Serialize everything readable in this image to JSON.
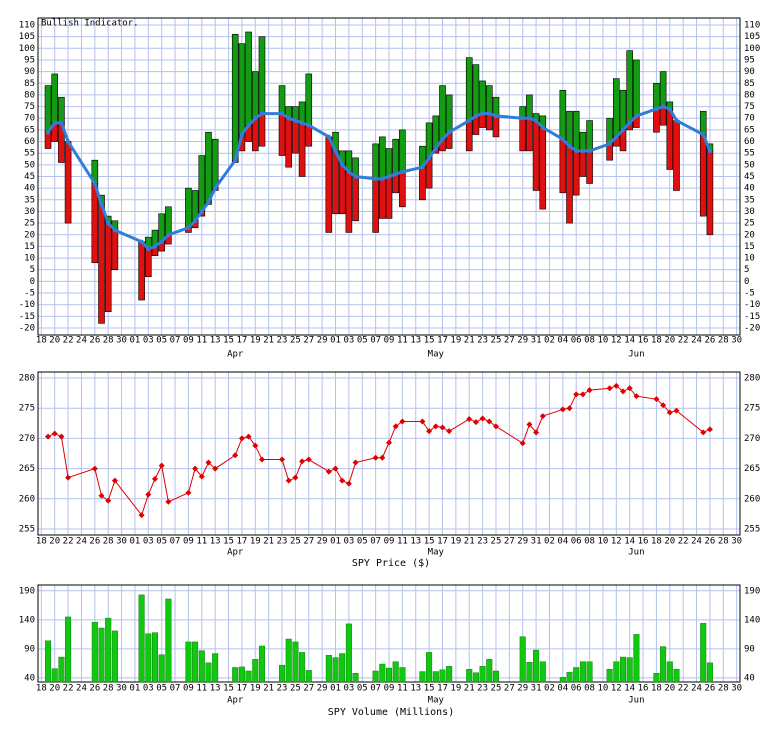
{
  "chart_data": [
    {
      "type": "range_bar",
      "title": "Bullish Indicator.",
      "x": [
        1,
        2,
        3,
        4,
        8,
        9,
        10,
        11,
        15,
        16,
        17,
        18,
        19,
        22,
        23,
        24,
        25,
        26,
        29,
        30,
        31,
        32,
        33,
        36,
        37,
        38,
        39,
        40,
        43,
        44,
        45,
        46,
        47,
        50,
        51,
        52,
        53,
        54,
        57,
        58,
        59,
        60,
        61,
        64,
        65,
        66,
        67,
        68,
        72,
        73,
        74,
        75,
        78,
        79,
        80,
        81,
        82,
        85,
        86,
        87,
        88,
        89,
        92,
        93,
        94,
        95,
        99,
        100
      ],
      "values": [
        64,
        68,
        68,
        60,
        42,
        33,
        25,
        22,
        17,
        14,
        15,
        17,
        20,
        23,
        26,
        30,
        34,
        40,
        52,
        63,
        67,
        70,
        72,
        72,
        70,
        69,
        68,
        67,
        62,
        56,
        50,
        47,
        45,
        44,
        44,
        45,
        46,
        47,
        49,
        53,
        57,
        61,
        64,
        69,
        71,
        72,
        72,
        71,
        70,
        70,
        69,
        66,
        61,
        58,
        56,
        56,
        56,
        59,
        62,
        65,
        68,
        71,
        74,
        75,
        74,
        69,
        63,
        56
      ],
      "high": [
        84,
        89,
        79,
        60,
        52,
        37,
        28,
        26,
        17,
        19,
        22,
        29,
        32,
        40,
        39,
        54,
        64,
        61,
        106,
        102,
        107,
        90,
        105,
        84,
        75,
        75,
        77,
        89,
        62,
        64,
        56,
        56,
        53,
        59,
        62,
        57,
        61,
        65,
        58,
        68,
        71,
        84,
        80,
        96,
        93,
        86,
        84,
        79,
        75,
        80,
        72,
        71,
        82,
        73,
        73,
        64,
        69,
        70,
        87,
        82,
        99,
        95,
        85,
        90,
        77,
        69,
        73,
        59
      ],
      "low": [
        57,
        60,
        51,
        25,
        8,
        -18,
        -13,
        5,
        -8,
        2,
        11,
        13,
        16,
        21,
        23,
        28,
        33,
        39,
        51,
        56,
        60,
        56,
        58,
        54,
        49,
        55,
        45,
        58,
        21,
        29,
        29,
        21,
        26,
        21,
        27,
        27,
        38,
        32,
        35,
        40,
        55,
        56,
        57,
        56,
        63,
        66,
        65,
        62,
        56,
        56,
        39,
        31,
        38,
        25,
        37,
        45,
        42,
        52,
        58,
        56,
        65,
        66,
        64,
        67,
        48,
        39,
        28,
        20
      ],
      "line_color": "#2f7fd8",
      "up_color": "#139c13",
      "down_color": "#e01010",
      "xlim": [
        -0.5,
        104.5
      ],
      "ylim": [
        -23,
        113
      ],
      "yticks": [
        -20,
        -15,
        -10,
        -5,
        0,
        5,
        10,
        15,
        20,
        25,
        30,
        35,
        40,
        45,
        50,
        55,
        60,
        65,
        70,
        75,
        80,
        85,
        90,
        95,
        100,
        105,
        110
      ],
      "xticks": [
        {
          "value": 0,
          "label": "18"
        },
        {
          "value": 2,
          "label": "20"
        },
        {
          "value": 4,
          "label": "22"
        },
        {
          "value": 6,
          "label": "24"
        },
        {
          "value": 8,
          "label": "26"
        },
        {
          "value": 10,
          "label": "28"
        },
        {
          "value": 12,
          "label": "30"
        },
        {
          "value": 14,
          "label": "01"
        },
        {
          "value": 16,
          "label": "03"
        },
        {
          "value": 18,
          "label": "05"
        },
        {
          "value": 20,
          "label": "07"
        },
        {
          "value": 22,
          "label": "09"
        },
        {
          "value": 24,
          "label": "11"
        },
        {
          "value": 26,
          "label": "13"
        },
        {
          "value": 28,
          "label": "15"
        },
        {
          "value": 30,
          "label": "17"
        },
        {
          "value": 32,
          "label": "19"
        },
        {
          "value": 34,
          "label": "21"
        },
        {
          "value": 36,
          "label": "23"
        },
        {
          "value": 38,
          "label": "25"
        },
        {
          "value": 40,
          "label": "27"
        },
        {
          "value": 42,
          "label": "29"
        },
        {
          "value": 44,
          "label": "01"
        },
        {
          "value": 46,
          "label": "03"
        },
        {
          "value": 48,
          "label": "05"
        },
        {
          "value": 50,
          "label": "07"
        },
        {
          "value": 52,
          "label": "09"
        },
        {
          "value": 54,
          "label": "11"
        },
        {
          "value": 56,
          "label": "13"
        },
        {
          "value": 58,
          "label": "15"
        },
        {
          "value": 60,
          "label": "17"
        },
        {
          "value": 62,
          "label": "19"
        },
        {
          "value": 64,
          "label": "21"
        },
        {
          "value": 66,
          "label": "23"
        },
        {
          "value": 68,
          "label": "25"
        },
        {
          "value": 70,
          "label": "27"
        },
        {
          "value": 72,
          "label": "29"
        },
        {
          "value": 74,
          "label": "31"
        },
        {
          "value": 76,
          "label": "02"
        },
        {
          "value": 78,
          "label": "04"
        },
        {
          "value": 80,
          "label": "06"
        },
        {
          "value": 82,
          "label": "08"
        },
        {
          "value": 84,
          "label": "10"
        },
        {
          "value": 86,
          "label": "12"
        },
        {
          "value": 88,
          "label": "14"
        },
        {
          "value": 90,
          "label": "16"
        },
        {
          "value": 92,
          "label": "18"
        },
        {
          "value": 94,
          "label": "20"
        },
        {
          "value": 96,
          "label": "22"
        },
        {
          "value": 98,
          "label": "24"
        },
        {
          "value": 100,
          "label": "26"
        },
        {
          "value": 102,
          "label": "28"
        },
        {
          "value": 104,
          "label": "30"
        }
      ],
      "xmonths": [
        {
          "value": 29,
          "label": "Apr"
        },
        {
          "value": 59,
          "label": "May"
        },
        {
          "value": 89,
          "label": "Jun"
        }
      ],
      "grid": true
    },
    {
      "type": "line",
      "xlabel": "SPY Price ($)",
      "x": [
        1,
        2,
        3,
        4,
        8,
        9,
        10,
        11,
        15,
        16,
        17,
        18,
        19,
        22,
        23,
        24,
        25,
        26,
        29,
        30,
        31,
        32,
        33,
        36,
        37,
        38,
        39,
        40,
        43,
        44,
        45,
        46,
        47,
        50,
        51,
        52,
        53,
        54,
        57,
        58,
        59,
        60,
        61,
        64,
        65,
        66,
        67,
        68,
        72,
        73,
        74,
        75,
        78,
        79,
        80,
        81,
        82,
        85,
        86,
        87,
        88,
        89,
        92,
        93,
        94,
        95,
        99,
        100
      ],
      "values": [
        270.3,
        270.8,
        270.3,
        263.5,
        265,
        260.5,
        259.7,
        263,
        257.3,
        260.7,
        263.3,
        265.5,
        259.5,
        261,
        265,
        263.7,
        266,
        265,
        267.2,
        270,
        270.3,
        268.8,
        266.5,
        266.5,
        263,
        263.5,
        266.2,
        266.5,
        264.5,
        265,
        263,
        262.5,
        266,
        266.8,
        266.8,
        269.3,
        272,
        272.8,
        272.8,
        271.2,
        272,
        271.8,
        271.2,
        273.2,
        272.7,
        273.3,
        272.8,
        272,
        269.2,
        272.3,
        271,
        273.7,
        274.8,
        275,
        277.3,
        277.3,
        278,
        278.3,
        278.7,
        277.8,
        278.3,
        277,
        276.5,
        275.5,
        274.3,
        274.6,
        271,
        271.5
      ],
      "color": "#e00000",
      "xlim": [
        -0.5,
        104.5
      ],
      "ylim": [
        254,
        281
      ],
      "yticks": [
        255,
        260,
        265,
        270,
        275,
        280
      ],
      "xticks": [
        {
          "value": 0,
          "label": "18"
        },
        {
          "value": 2,
          "label": "20"
        },
        {
          "value": 4,
          "label": "22"
        },
        {
          "value": 6,
          "label": "24"
        },
        {
          "value": 8,
          "label": "26"
        },
        {
          "value": 10,
          "label": "28"
        },
        {
          "value": 12,
          "label": "30"
        },
        {
          "value": 14,
          "label": "01"
        },
        {
          "value": 16,
          "label": "03"
        },
        {
          "value": 18,
          "label": "05"
        },
        {
          "value": 20,
          "label": "07"
        },
        {
          "value": 22,
          "label": "09"
        },
        {
          "value": 24,
          "label": "11"
        },
        {
          "value": 26,
          "label": "13"
        },
        {
          "value": 28,
          "label": "15"
        },
        {
          "value": 30,
          "label": "17"
        },
        {
          "value": 32,
          "label": "19"
        },
        {
          "value": 34,
          "label": "21"
        },
        {
          "value": 36,
          "label": "23"
        },
        {
          "value": 38,
          "label": "25"
        },
        {
          "value": 40,
          "label": "27"
        },
        {
          "value": 42,
          "label": "29"
        },
        {
          "value": 44,
          "label": "01"
        },
        {
          "value": 46,
          "label": "03"
        },
        {
          "value": 48,
          "label": "05"
        },
        {
          "value": 50,
          "label": "07"
        },
        {
          "value": 52,
          "label": "09"
        },
        {
          "value": 54,
          "label": "11"
        },
        {
          "value": 56,
          "label": "13"
        },
        {
          "value": 58,
          "label": "15"
        },
        {
          "value": 60,
          "label": "17"
        },
        {
          "value": 62,
          "label": "19"
        },
        {
          "value": 64,
          "label": "21"
        },
        {
          "value": 66,
          "label": "23"
        },
        {
          "value": 68,
          "label": "25"
        },
        {
          "value": 70,
          "label": "27"
        },
        {
          "value": 72,
          "label": "29"
        },
        {
          "value": 74,
          "label": "31"
        },
        {
          "value": 76,
          "label": "02"
        },
        {
          "value": 78,
          "label": "04"
        },
        {
          "value": 80,
          "label": "06"
        },
        {
          "value": 82,
          "label": "08"
        },
        {
          "value": 84,
          "label": "10"
        },
        {
          "value": 86,
          "label": "12"
        },
        {
          "value": 88,
          "label": "14"
        },
        {
          "value": 90,
          "label": "16"
        },
        {
          "value": 92,
          "label": "18"
        },
        {
          "value": 94,
          "label": "20"
        },
        {
          "value": 96,
          "label": "22"
        },
        {
          "value": 98,
          "label": "24"
        },
        {
          "value": 100,
          "label": "26"
        },
        {
          "value": 102,
          "label": "28"
        },
        {
          "value": 104,
          "label": "30"
        }
      ],
      "xmonths": [
        {
          "value": 29,
          "label": "Apr"
        },
        {
          "value": 59,
          "label": "May"
        },
        {
          "value": 89,
          "label": "Jun"
        }
      ],
      "grid": true
    },
    {
      "type": "bar",
      "xlabel": "SPY Volume (Millions)",
      "x": [
        1,
        2,
        3,
        4,
        8,
        9,
        10,
        11,
        15,
        16,
        17,
        18,
        19,
        22,
        23,
        24,
        25,
        26,
        29,
        30,
        31,
        32,
        33,
        36,
        37,
        38,
        39,
        40,
        43,
        44,
        45,
        46,
        47,
        50,
        51,
        52,
        53,
        54,
        57,
        58,
        59,
        60,
        61,
        64,
        65,
        66,
        67,
        68,
        72,
        73,
        74,
        75,
        78,
        79,
        80,
        81,
        82,
        85,
        86,
        87,
        88,
        89,
        92,
        93,
        94,
        95,
        99,
        100
      ],
      "values": [
        104,
        56,
        76,
        145,
        136,
        126,
        143,
        121,
        183,
        116,
        118,
        80,
        176,
        102,
        102,
        87,
        66,
        82,
        58,
        59,
        52,
        72,
        95,
        62,
        107,
        102,
        84,
        53,
        79,
        75,
        82,
        133,
        48,
        52,
        64,
        57,
        68,
        58,
        51,
        84,
        51,
        54,
        60,
        55,
        49,
        60,
        72,
        52,
        111,
        67,
        88,
        68,
        41,
        50,
        58,
        68,
        68,
        55,
        68,
        76,
        75,
        115,
        48,
        94,
        68,
        55,
        134,
        66
      ],
      "color": "#0fc80f",
      "xlim": [
        -0.5,
        104.5
      ],
      "ylim": [
        33,
        200
      ],
      "yticks": [
        40,
        90,
        140,
        190
      ],
      "xticks": [
        {
          "value": 0,
          "label": "18"
        },
        {
          "value": 2,
          "label": "20"
        },
        {
          "value": 4,
          "label": "22"
        },
        {
          "value": 6,
          "label": "24"
        },
        {
          "value": 8,
          "label": "26"
        },
        {
          "value": 10,
          "label": "28"
        },
        {
          "value": 12,
          "label": "30"
        },
        {
          "value": 14,
          "label": "01"
        },
        {
          "value": 16,
          "label": "03"
        },
        {
          "value": 18,
          "label": "05"
        },
        {
          "value": 20,
          "label": "07"
        },
        {
          "value": 22,
          "label": "09"
        },
        {
          "value": 24,
          "label": "11"
        },
        {
          "value": 26,
          "label": "13"
        },
        {
          "value": 28,
          "label": "15"
        },
        {
          "value": 30,
          "label": "17"
        },
        {
          "value": 32,
          "label": "19"
        },
        {
          "value": 34,
          "label": "21"
        },
        {
          "value": 36,
          "label": "23"
        },
        {
          "value": 38,
          "label": "25"
        },
        {
          "value": 40,
          "label": "27"
        },
        {
          "value": 42,
          "label": "29"
        },
        {
          "value": 44,
          "label": "01"
        },
        {
          "value": 46,
          "label": "03"
        },
        {
          "value": 48,
          "label": "05"
        },
        {
          "value": 50,
          "label": "07"
        },
        {
          "value": 52,
          "label": "09"
        },
        {
          "value": 54,
          "label": "11"
        },
        {
          "value": 56,
          "label": "13"
        },
        {
          "value": 58,
          "label": "15"
        },
        {
          "value": 60,
          "label": "17"
        },
        {
          "value": 62,
          "label": "19"
        },
        {
          "value": 64,
          "label": "21"
        },
        {
          "value": 66,
          "label": "23"
        },
        {
          "value": 68,
          "label": "25"
        },
        {
          "value": 70,
          "label": "27"
        },
        {
          "value": 72,
          "label": "29"
        },
        {
          "value": 74,
          "label": "31"
        },
        {
          "value": 76,
          "label": "02"
        },
        {
          "value": 78,
          "label": "04"
        },
        {
          "value": 80,
          "label": "06"
        },
        {
          "value": 82,
          "label": "08"
        },
        {
          "value": 84,
          "label": "10"
        },
        {
          "value": 86,
          "label": "12"
        },
        {
          "value": 88,
          "label": "14"
        },
        {
          "value": 90,
          "label": "16"
        },
        {
          "value": 92,
          "label": "18"
        },
        {
          "value": 94,
          "label": "20"
        },
        {
          "value": 96,
          "label": "22"
        },
        {
          "value": 98,
          "label": "24"
        },
        {
          "value": 100,
          "label": "26"
        },
        {
          "value": 102,
          "label": "28"
        },
        {
          "value": 104,
          "label": "30"
        }
      ],
      "xmonths": [
        {
          "value": 29,
          "label": "Apr"
        },
        {
          "value": 59,
          "label": "May"
        },
        {
          "value": 89,
          "label": "Jun"
        }
      ],
      "grid": true
    }
  ]
}
